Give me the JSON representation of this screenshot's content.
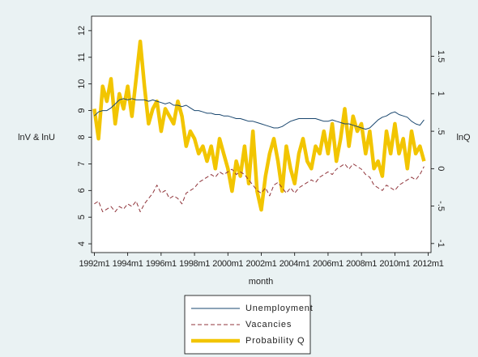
{
  "chart_data": {
    "type": "line",
    "xlabel": "month",
    "ylabel": "lnV & lnU",
    "y2label": "lnQ",
    "x": [
      "1992m1",
      "1992m4",
      "1992m7",
      "1992m10",
      "1993m1",
      "1993m4",
      "1993m7",
      "1993m10",
      "1994m1",
      "1994m4",
      "1994m7",
      "1994m10",
      "1995m1",
      "1995m4",
      "1995m7",
      "1995m10",
      "1996m1",
      "1996m4",
      "1996m7",
      "1996m10",
      "1997m1",
      "1997m4",
      "1997m7",
      "1997m10",
      "1998m1",
      "1998m4",
      "1998m7",
      "1998m10",
      "1999m1",
      "1999m4",
      "1999m7",
      "1999m10",
      "2000m1",
      "2000m4",
      "2000m7",
      "2000m10",
      "2001m1",
      "2001m4",
      "2001m7",
      "2001m10",
      "2002m1",
      "2002m4",
      "2002m7",
      "2002m10",
      "2003m1",
      "2003m4",
      "2003m7",
      "2003m10",
      "2004m1",
      "2004m4",
      "2004m7",
      "2004m10",
      "2005m1",
      "2005m4",
      "2005m7",
      "2005m10",
      "2006m1",
      "2006m4",
      "2006m7",
      "2006m10",
      "2007m1",
      "2007m4",
      "2007m7",
      "2007m10",
      "2008m1",
      "2008m4",
      "2008m7",
      "2008m10",
      "2009m1",
      "2009m4",
      "2009m7",
      "2009m10",
      "2010m1",
      "2010m4",
      "2010m7",
      "2010m10",
      "2011m1",
      "2011m4",
      "2011m7",
      "2011m10"
    ],
    "series": [
      {
        "name": "Unemployment",
        "color": "#1a476f",
        "width": 1,
        "dash": "none",
        "values": [
          8.8,
          8.95,
          9.0,
          9.0,
          9.1,
          9.25,
          9.4,
          9.45,
          9.4,
          9.45,
          9.4,
          9.4,
          9.4,
          9.35,
          9.4,
          9.35,
          9.3,
          9.25,
          9.3,
          9.2,
          9.2,
          9.15,
          9.2,
          9.1,
          9.0,
          9.0,
          8.95,
          8.9,
          8.9,
          8.85,
          8.85,
          8.8,
          8.8,
          8.75,
          8.7,
          8.7,
          8.65,
          8.6,
          8.6,
          8.55,
          8.5,
          8.45,
          8.4,
          8.35,
          8.35,
          8.4,
          8.5,
          8.6,
          8.65,
          8.7,
          8.7,
          8.7,
          8.7,
          8.7,
          8.65,
          8.6,
          8.6,
          8.65,
          8.6,
          8.55,
          8.5,
          8.5,
          8.45,
          8.4,
          8.35,
          8.3,
          8.35,
          8.5,
          8.65,
          8.75,
          8.8,
          8.9,
          8.95,
          8.85,
          8.8,
          8.75,
          8.6,
          8.5,
          8.45,
          8.65
        ]
      },
      {
        "name": "Vacancies",
        "color": "#90353b",
        "width": 1,
        "dash": "5,3",
        "values": [
          5.5,
          5.6,
          5.2,
          5.3,
          5.4,
          5.2,
          5.4,
          5.3,
          5.5,
          5.4,
          5.6,
          5.2,
          5.5,
          5.7,
          5.9,
          6.2,
          5.9,
          6.0,
          5.7,
          5.8,
          5.7,
          5.5,
          5.9,
          6.0,
          6.1,
          6.3,
          6.4,
          6.5,
          6.6,
          6.5,
          6.7,
          6.6,
          6.7,
          6.8,
          6.6,
          6.7,
          6.6,
          6.4,
          6.2,
          6.0,
          5.9,
          6.1,
          5.8,
          6.2,
          6.3,
          6.1,
          5.9,
          6.1,
          5.9,
          6.1,
          6.2,
          6.3,
          6.4,
          6.3,
          6.5,
          6.6,
          6.7,
          6.6,
          6.8,
          6.9,
          7.0,
          6.8,
          7.0,
          6.9,
          6.8,
          6.6,
          6.5,
          6.2,
          6.1,
          6.0,
          6.2,
          6.1,
          6.0,
          6.2,
          6.3,
          6.4,
          6.5,
          6.4,
          6.6,
          6.9
        ]
      },
      {
        "name": "Probability Q",
        "color": "#f2c500",
        "width": 4.5,
        "dash": "none",
        "axis": "y2",
        "values": [
          0.8,
          0.4,
          1.1,
          0.9,
          1.2,
          0.6,
          1.0,
          0.8,
          1.1,
          0.7,
          1.2,
          1.7,
          1.1,
          0.6,
          0.8,
          0.9,
          0.5,
          0.8,
          0.7,
          0.6,
          0.9,
          0.7,
          0.3,
          0.5,
          0.4,
          0.2,
          0.3,
          0.1,
          0.3,
          0.0,
          0.4,
          0.2,
          0.0,
          -0.3,
          0.1,
          -0.1,
          0.3,
          -0.2,
          0.5,
          -0.3,
          -0.55,
          -0.1,
          0.2,
          0.4,
          0.1,
          -0.3,
          0.3,
          0.0,
          -0.2,
          0.2,
          0.4,
          0.1,
          0.0,
          0.3,
          0.2,
          0.5,
          0.2,
          0.6,
          0.1,
          0.4,
          0.8,
          0.3,
          0.7,
          0.5,
          0.6,
          0.2,
          0.5,
          0.0,
          0.1,
          -0.1,
          0.5,
          0.2,
          0.6,
          0.2,
          0.4,
          0.0,
          0.5,
          0.2,
          0.3,
          0.1
        ]
      }
    ],
    "xlim": [
      "1991m11",
      "2012m3"
    ],
    "xticks": [
      "1992m1",
      "1994m1",
      "1996m1",
      "1998m1",
      "2000m1",
      "2002m1",
      "2004m1",
      "2006m1",
      "2008m1",
      "2010m1",
      "2012m1"
    ],
    "ylim": [
      3.7,
      12.3
    ],
    "yticks": [
      4,
      5,
      6,
      7,
      8,
      9,
      10,
      11,
      12
    ],
    "y2lim": [
      -1.11,
      1.95
    ],
    "y2ticks": [
      -1,
      {
        "value": -0.5,
        "label": "-.5"
      },
      0,
      {
        "value": 0.5,
        "label": ".5"
      },
      1,
      1.5
    ],
    "legend": "bottom"
  }
}
